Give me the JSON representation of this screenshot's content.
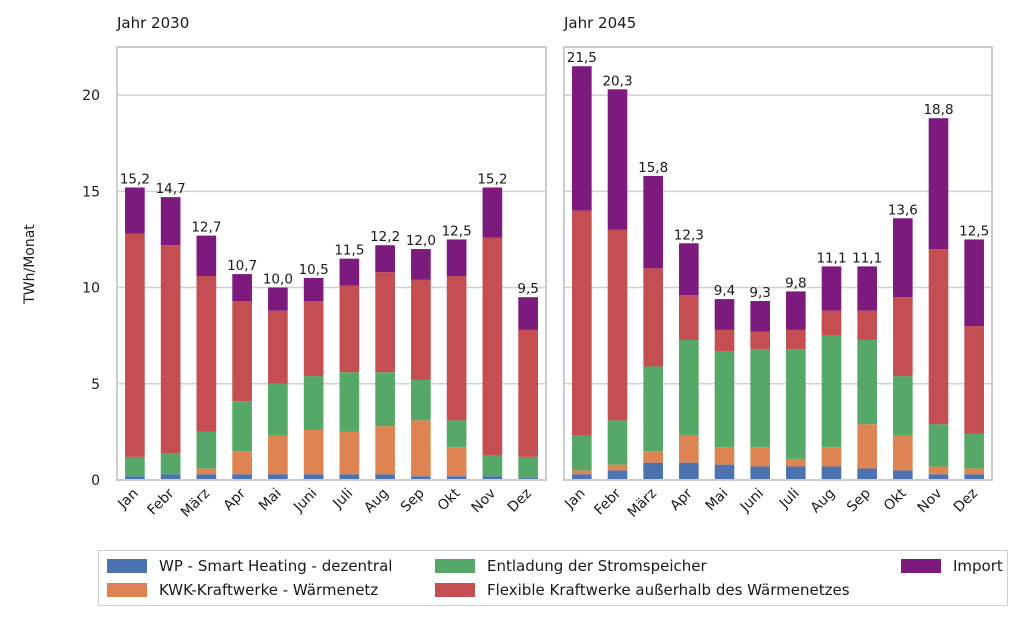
{
  "chart_data": {
    "type": "bar",
    "stacked": true,
    "ylabel": "TWh/Monat",
    "ylim": [
      0,
      22.5
    ],
    "yticks": [
      0,
      5,
      10,
      15,
      20
    ],
    "grid": true,
    "legend_position": "bottom",
    "categories": [
      "Jan",
      "Febr",
      "März",
      "Apr",
      "Mai",
      "Juni",
      "Juli",
      "Aug",
      "Sep",
      "Okt",
      "Nov",
      "Dez"
    ],
    "series": [
      {
        "name": "WP - Smart Heating - dezentral",
        "color": "#4c72b0"
      },
      {
        "name": "KWK-Kraftwerke - Wärmenetz",
        "color": "#dd8452"
      },
      {
        "name": "Entladung der Stromspeicher",
        "color": "#55a868"
      },
      {
        "name": "Flexible Kraftwerke außerhalb des Wärmenetzes",
        "color": "#c44e52"
      },
      {
        "name": "Import",
        "color": "#7d1a7d"
      }
    ],
    "panels": [
      {
        "title": "Jahr 2030",
        "totals_labels": [
          "15,2",
          "14,7",
          "12,7",
          "10,7",
          "10,0",
          "10,5",
          "11,5",
          "12,2",
          "12,0",
          "12,5",
          "15,2",
          "9,5"
        ],
        "values": [
          [
            0.2,
            0.3,
            0.3,
            0.3,
            0.3,
            0.3,
            0.3,
            0.3,
            0.2,
            0.2,
            0.2,
            0.1
          ],
          [
            0.0,
            0.0,
            0.3,
            1.2,
            2.0,
            2.3,
            2.2,
            2.5,
            2.9,
            1.5,
            0.0,
            0.0
          ],
          [
            1.0,
            1.1,
            1.9,
            2.6,
            2.7,
            2.8,
            3.1,
            2.8,
            2.1,
            1.4,
            1.1,
            1.1
          ],
          [
            11.6,
            10.8,
            8.1,
            5.2,
            3.8,
            3.9,
            4.5,
            5.2,
            5.2,
            7.5,
            11.3,
            6.6
          ],
          [
            2.4,
            2.5,
            2.1,
            1.4,
            1.2,
            1.2,
            1.4,
            1.4,
            1.6,
            1.9,
            2.6,
            1.7
          ]
        ]
      },
      {
        "title": "Jahr 2045",
        "totals_labels": [
          "21,5",
          "20,3",
          "15,8",
          "12,3",
          "9,4",
          "9,3",
          "9,8",
          "11,1",
          "11,1",
          "13,6",
          "18,8",
          "12,5"
        ],
        "values": [
          [
            0.3,
            0.5,
            0.9,
            0.9,
            0.8,
            0.7,
            0.7,
            0.7,
            0.6,
            0.5,
            0.3,
            0.3
          ],
          [
            0.2,
            0.3,
            0.6,
            1.4,
            0.9,
            1.0,
            0.4,
            1.0,
            2.3,
            1.8,
            0.4,
            0.3
          ],
          [
            1.8,
            2.3,
            4.4,
            5.0,
            5.0,
            5.1,
            5.7,
            5.8,
            4.4,
            3.1,
            2.2,
            1.8
          ],
          [
            11.7,
            9.9,
            5.1,
            2.3,
            1.1,
            0.9,
            1.0,
            1.3,
            1.5,
            4.1,
            9.1,
            5.6
          ],
          [
            7.5,
            7.3,
            4.8,
            2.7,
            1.6,
            1.6,
            2.0,
            2.3,
            2.3,
            4.1,
            6.8,
            4.5
          ]
        ]
      }
    ]
  }
}
